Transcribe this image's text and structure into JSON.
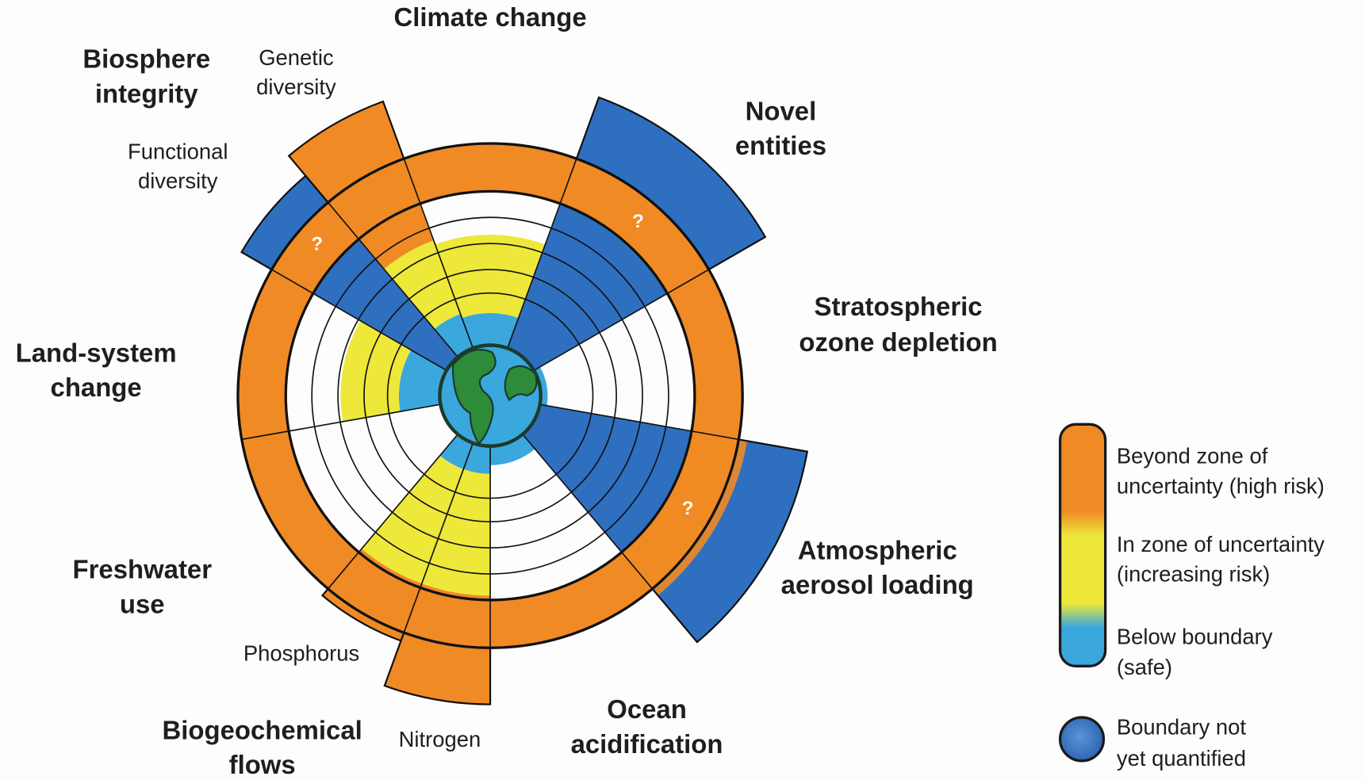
{
  "diagram": {
    "labels": [
      {
        "lines": [
          "Climate change"
        ],
        "kind": "bold"
      },
      {
        "lines": [
          "Biosphere",
          "integrity"
        ],
        "kind": "bold"
      },
      {
        "lines": [
          "Genetic",
          "diversity"
        ],
        "kind": "normal"
      },
      {
        "lines": [
          "Functional",
          "diversity"
        ],
        "kind": "normal"
      },
      {
        "lines": [
          "Novel",
          "entities"
        ],
        "kind": "bold"
      },
      {
        "lines": [
          "Stratospheric",
          "ozone depletion"
        ],
        "kind": "bold"
      },
      {
        "lines": [
          "Land-system",
          "change"
        ],
        "kind": "bold"
      },
      {
        "lines": [
          "Atmospheric",
          "aerosol loading"
        ],
        "kind": "bold"
      },
      {
        "lines": [
          "Freshwater",
          "use"
        ],
        "kind": "bold"
      },
      {
        "lines": [
          "Phosphorus"
        ],
        "kind": "normal"
      },
      {
        "lines": [
          "Biogeochemical",
          "flows"
        ],
        "kind": "bold"
      },
      {
        "lines": [
          "Nitrogen"
        ],
        "kind": "normal"
      },
      {
        "lines": [
          "Ocean",
          "acidification"
        ],
        "kind": "bold"
      }
    ],
    "question_marks": [
      "?",
      "?",
      "?"
    ],
    "legend": [
      {
        "lines": [
          "Beyond zone of",
          "uncertainty (high risk)"
        ]
      },
      {
        "lines": [
          "In zone of uncertainty",
          "(increasing risk)"
        ]
      },
      {
        "lines": [
          "Below boundary",
          "(safe)"
        ]
      },
      {
        "lines": [
          "Boundary not",
          "yet quantified"
        ]
      }
    ]
  }
}
